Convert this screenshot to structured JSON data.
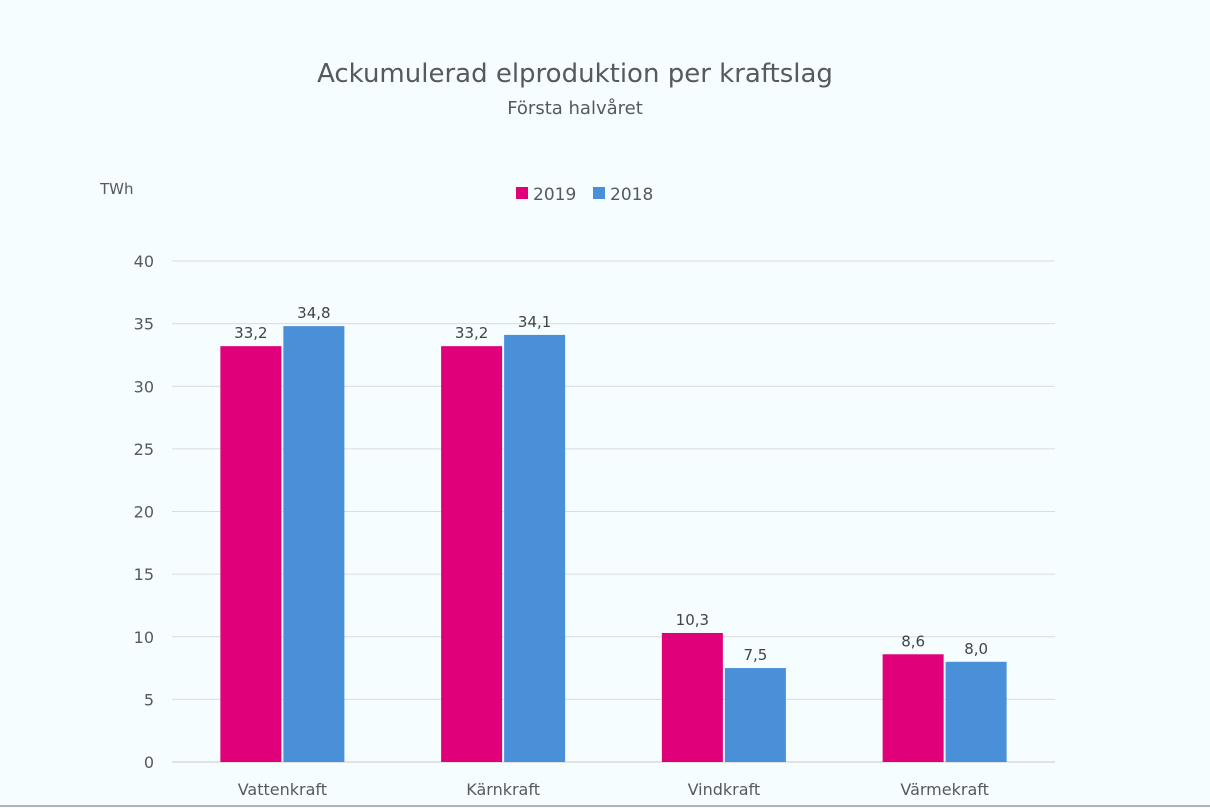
{
  "chart_data": {
    "type": "bar",
    "title": "Ackumulerad elproduktion per kraftslag",
    "subtitle": "Första halvåret",
    "ylabel": "TWh",
    "xlabel": "",
    "categories": [
      "Vattenkraft",
      "Kärnkraft",
      "Vindkraft",
      "Värmekraft"
    ],
    "series": [
      {
        "name": "2019",
        "color": "#e0007a",
        "values": [
          33.2,
          33.2,
          10.3,
          8.6
        ],
        "labels": [
          "33,2",
          "33,2",
          "10,3",
          "8,6"
        ]
      },
      {
        "name": "2018",
        "color": "#4a90d9",
        "values": [
          34.8,
          34.1,
          7.5,
          8.0
        ],
        "labels": [
          "34,8",
          "34,1",
          "7,5",
          "8,0"
        ]
      }
    ],
    "ylim": [
      0,
      40
    ],
    "yticks": [
      0,
      5,
      10,
      15,
      20,
      25,
      30,
      35,
      40
    ],
    "grid": true,
    "legend_position": "top-center"
  }
}
